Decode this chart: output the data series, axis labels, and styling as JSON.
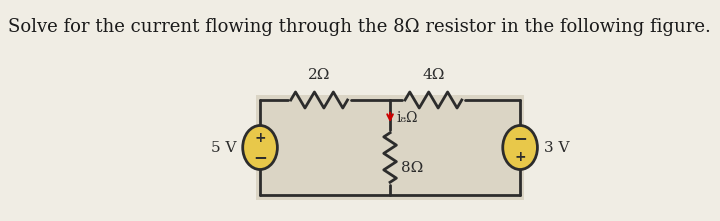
{
  "title": "Solve for the current flowing through the 8Ω resistor in the following figure.",
  "title_fontsize": 13,
  "bg_color": "#f0ede4",
  "circuit_bg": "#dbd5c5",
  "wire_color": "#2c2c2c",
  "resistor_color": "#2c2c2c",
  "source_fill": "#e8c84a",
  "source_stroke": "#2c2c2c",
  "label_2ohm": "2Ω",
  "label_4ohm": "4Ω",
  "label_8ohm_res": "8Ω",
  "label_i8ohm": "i₈Ω",
  "label_5v": "5 V",
  "label_3v": "3 V",
  "plus_color": "#2c2c2c",
  "minus_color": "#2c2c2c",
  "arrow_color": "#cc0000"
}
